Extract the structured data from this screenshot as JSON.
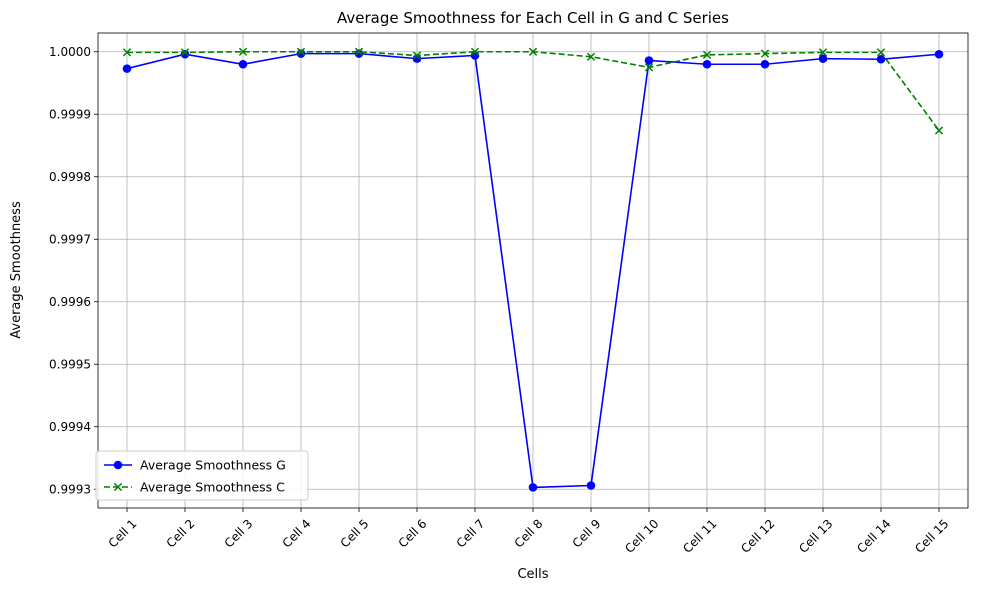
{
  "chart_data": {
    "type": "line",
    "title": "Average Smoothness for Each Cell in G and C Series",
    "xlabel": "Cells",
    "ylabel": "Average Smoothness",
    "categories": [
      "Cell 1",
      "Cell 2",
      "Cell 3",
      "Cell 4",
      "Cell 5",
      "Cell 6",
      "Cell 7",
      "Cell 8",
      "Cell 9",
      "Cell 10",
      "Cell 11",
      "Cell 12",
      "Cell 13",
      "Cell 14",
      "Cell 15"
    ],
    "ylim": [
      0.99927,
      1.00003
    ],
    "yticks": [
      0.9993,
      0.9994,
      0.9995,
      0.9996,
      0.9997,
      0.9998,
      0.9999,
      1.0
    ],
    "ytick_labels": [
      "0.9993",
      "0.9994",
      "0.9995",
      "0.9996",
      "0.9997",
      "0.9998",
      "0.9999",
      "1.0000"
    ],
    "grid": true,
    "legend_position": "lower-left",
    "series": [
      {
        "name": "Average Smoothness G",
        "color": "#0000ff",
        "line_style": "solid",
        "marker": "circle",
        "values": [
          0.999973,
          0.999996,
          0.99998,
          0.999997,
          0.999997,
          0.999989,
          0.999994,
          0.999303,
          0.999306,
          0.999986,
          0.99998,
          0.99998,
          0.999989,
          0.999988,
          0.999996
        ]
      },
      {
        "name": "Average Smoothness C",
        "color": "#008000",
        "line_style": "dashed",
        "marker": "x",
        "values": [
          0.999999,
          0.999999,
          1.0,
          1.0,
          1.0,
          0.999994,
          1.0,
          1.0,
          0.999992,
          0.999975,
          0.999995,
          0.999997,
          0.999999,
          0.999999,
          0.999874
        ]
      }
    ]
  }
}
